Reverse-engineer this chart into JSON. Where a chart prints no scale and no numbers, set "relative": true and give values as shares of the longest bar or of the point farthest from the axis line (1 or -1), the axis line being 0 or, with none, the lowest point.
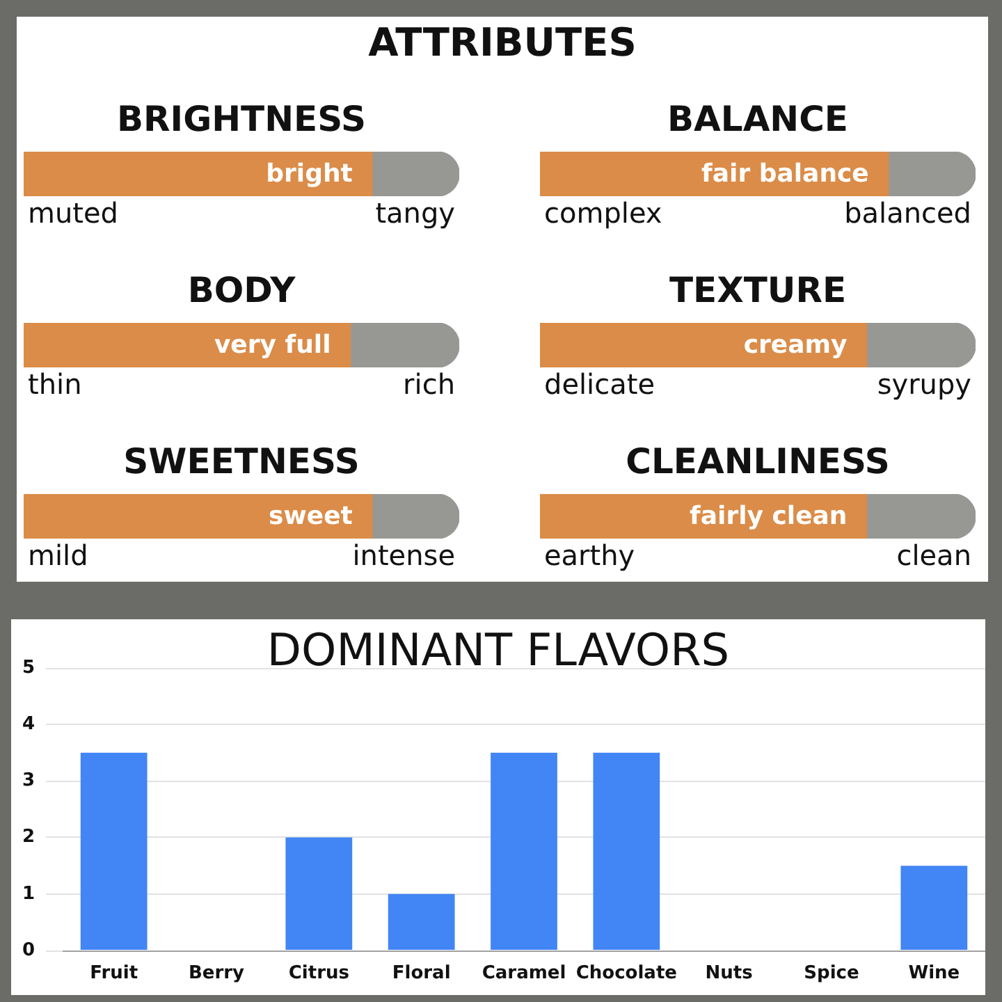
{
  "chart_data": [
    {
      "type": "other",
      "title": "ATTRIBUTES"
    },
    {
      "type": "bar",
      "orientation": "horizontal",
      "stacked": true,
      "relative": true,
      "title": "BRIGHTNESS",
      "categories": [
        null
      ],
      "series": [
        {
          "name": "bright",
          "color": "#db8c48",
          "values": [
            0.8
          ]
        },
        {
          "color": "#979894",
          "values": [
            0.2
          ]
        }
      ],
      "annotations": [
        "muted",
        "tangy"
      ]
    },
    {
      "type": "bar",
      "orientation": "horizontal",
      "stacked": true,
      "relative": true,
      "title": "BALANCE",
      "categories": [
        null
      ],
      "series": [
        {
          "name": "fair balance",
          "color": "#db8c48",
          "values": [
            0.8
          ]
        },
        {
          "color": "#979894",
          "values": [
            0.2
          ]
        }
      ],
      "annotations": [
        "complex",
        "balanced"
      ]
    },
    {
      "type": "bar",
      "orientation": "horizontal",
      "stacked": true,
      "relative": true,
      "title": "BODY",
      "categories": [
        null
      ],
      "series": [
        {
          "name": "very full",
          "color": "#db8c48",
          "values": [
            0.75
          ]
        },
        {
          "color": "#979894",
          "values": [
            0.25
          ]
        }
      ],
      "annotations": [
        "thin",
        "rich"
      ]
    },
    {
      "type": "bar",
      "orientation": "horizontal",
      "stacked": true,
      "relative": true,
      "title": "TEXTURE",
      "categories": [
        null
      ],
      "series": [
        {
          "name": "creamy",
          "color": "#db8c48",
          "values": [
            0.75
          ]
        },
        {
          "color": "#979894",
          "values": [
            0.25
          ]
        }
      ],
      "annotations": [
        "delicate",
        "syrupy"
      ]
    },
    {
      "type": "bar",
      "orientation": "horizontal",
      "stacked": true,
      "relative": true,
      "title": "SWEETNESS",
      "categories": [
        null
      ],
      "series": [
        {
          "name": "sweet",
          "color": "#db8c48",
          "values": [
            0.8
          ]
        },
        {
          "color": "#979894",
          "values": [
            0.2
          ]
        }
      ],
      "annotations": [
        "mild",
        "intense"
      ]
    },
    {
      "type": "bar",
      "orientation": "horizontal",
      "stacked": true,
      "relative": true,
      "title": "CLEANLINESS",
      "categories": [
        null
      ],
      "series": [
        {
          "name": "fairly clean",
          "color": "#db8c48",
          "values": [
            0.75
          ]
        },
        {
          "color": "#979894",
          "values": [
            0.25
          ]
        }
      ],
      "annotations": [
        "earthy",
        "clean"
      ]
    },
    {
      "type": "bar",
      "title": "DOMINANT FLAVORS",
      "categories": [
        "Fruit",
        "Berry",
        "Citrus",
        "Floral",
        "Caramel",
        "Chocolate",
        "Nuts",
        "Spice",
        "Wine"
      ],
      "values": [
        3.5,
        0,
        2,
        1,
        3.5,
        3.5,
        0,
        0,
        1.5
      ],
      "color": "#4285f4",
      "ylim": [
        0,
        5
      ],
      "yticks": [
        0,
        1,
        2,
        3,
        4,
        5
      ],
      "grid": "y"
    }
  ]
}
